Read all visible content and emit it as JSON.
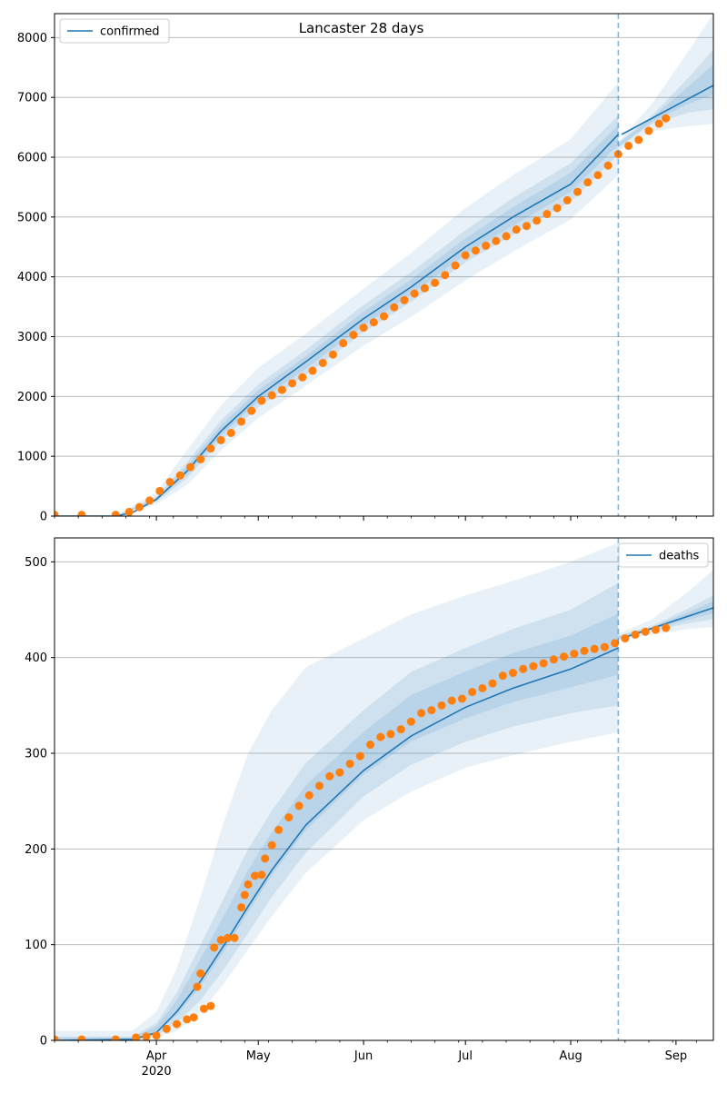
{
  "colors": {
    "model_line": "#1f77b4",
    "observed": "#ff7f0e",
    "band": "#1f77b4",
    "grid": "#b0b0b0",
    "vline": "#1f77b4"
  },
  "chart_data": [
    {
      "type": "line",
      "title": "Lancaster 28 days",
      "legend": {
        "label": "confirmed",
        "placement": "top-left"
      },
      "xlim": [
        "2020-03-02",
        "2020-09-12"
      ],
      "ylim": [
        0,
        8400
      ],
      "yticks": [
        0,
        1000,
        2000,
        3000,
        4000,
        5000,
        6000,
        7000,
        8000
      ],
      "grid": "y",
      "vline_date": "2020-08-15",
      "series": [
        {
          "name": "confirmed",
          "kind": "model",
          "x": [
            "2020-03-02",
            "2020-03-20",
            "2020-03-25",
            "2020-04-01",
            "2020-04-10",
            "2020-04-20",
            "2020-05-01",
            "2020-05-15",
            "2020-06-01",
            "2020-06-15",
            "2020-07-01",
            "2020-07-15",
            "2020-08-01",
            "2020-08-15"
          ],
          "y": [
            0,
            0,
            60,
            280,
            750,
            1420,
            2000,
            2580,
            3300,
            3830,
            4500,
            5000,
            5550,
            6380
          ]
        },
        {
          "kind": "forecast",
          "x": [
            "2020-08-16",
            "2020-09-12"
          ],
          "y": [
            6380,
            7200
          ]
        }
      ],
      "bands": [
        {
          "x": [
            "2020-03-02",
            "2020-03-20",
            "2020-04-01",
            "2020-04-10",
            "2020-04-20",
            "2020-05-01",
            "2020-05-15",
            "2020-06-01",
            "2020-06-15",
            "2020-07-01",
            "2020-07-15",
            "2020-08-01",
            "2020-08-15"
          ],
          "outer_upper": [
            0,
            0,
            400,
            1100,
            1850,
            2480,
            3050,
            3800,
            4400,
            5150,
            5700,
            6300,
            7250
          ],
          "outer_lower": [
            0,
            0,
            200,
            520,
            1100,
            1640,
            2180,
            2850,
            3330,
            3940,
            4420,
            4960,
            5700
          ],
          "inner_upper": [
            0,
            0,
            330,
            900,
            1600,
            2200,
            2780,
            3530,
            4080,
            4780,
            5320,
            5900,
            6700
          ],
          "inner_lower": [
            0,
            0,
            240,
            630,
            1260,
            1820,
            2360,
            3070,
            3580,
            4240,
            4700,
            5260,
            6040
          ]
        },
        {
          "x": [
            "2020-08-15",
            "2020-08-25",
            "2020-09-05",
            "2020-09-12"
          ],
          "outer_upper": [
            6250,
            6900,
            7800,
            8400
          ],
          "outer_lower": [
            6100,
            6440,
            6520,
            6560
          ],
          "inner_upper": [
            6250,
            6700,
            7350,
            7800
          ],
          "inner_lower": [
            6150,
            6560,
            6750,
            6800
          ]
        }
      ],
      "observed": [
        [
          "2020-03-02",
          20
        ],
        [
          "2020-03-10",
          20
        ],
        [
          "2020-03-20",
          20
        ],
        [
          "2020-03-24",
          70
        ],
        [
          "2020-03-27",
          150
        ],
        [
          "2020-03-30",
          260
        ],
        [
          "2020-04-02",
          420
        ],
        [
          "2020-04-05",
          570
        ],
        [
          "2020-04-08",
          680
        ],
        [
          "2020-04-11",
          820
        ],
        [
          "2020-04-14",
          950
        ],
        [
          "2020-04-17",
          1130
        ],
        [
          "2020-04-20",
          1270
        ],
        [
          "2020-04-23",
          1390
        ],
        [
          "2020-04-26",
          1580
        ],
        [
          "2020-04-29",
          1760
        ],
        [
          "2020-05-02",
          1930
        ],
        [
          "2020-05-05",
          2020
        ],
        [
          "2020-05-08",
          2110
        ],
        [
          "2020-05-11",
          2220
        ],
        [
          "2020-05-14",
          2320
        ],
        [
          "2020-05-17",
          2430
        ],
        [
          "2020-05-20",
          2560
        ],
        [
          "2020-05-23",
          2700
        ],
        [
          "2020-05-26",
          2890
        ],
        [
          "2020-05-29",
          3030
        ],
        [
          "2020-06-01",
          3150
        ],
        [
          "2020-06-04",
          3240
        ],
        [
          "2020-06-07",
          3340
        ],
        [
          "2020-06-10",
          3490
        ],
        [
          "2020-06-13",
          3610
        ],
        [
          "2020-06-16",
          3720
        ],
        [
          "2020-06-19",
          3810
        ],
        [
          "2020-06-22",
          3900
        ],
        [
          "2020-06-25",
          4030
        ],
        [
          "2020-06-28",
          4190
        ],
        [
          "2020-07-01",
          4360
        ],
        [
          "2020-07-04",
          4440
        ],
        [
          "2020-07-07",
          4520
        ],
        [
          "2020-07-10",
          4600
        ],
        [
          "2020-07-13",
          4680
        ],
        [
          "2020-07-16",
          4790
        ],
        [
          "2020-07-19",
          4850
        ],
        [
          "2020-07-22",
          4940
        ],
        [
          "2020-07-25",
          5050
        ],
        [
          "2020-07-28",
          5150
        ],
        [
          "2020-07-31",
          5280
        ],
        [
          "2020-08-03",
          5420
        ],
        [
          "2020-08-06",
          5580
        ],
        [
          "2020-08-09",
          5700
        ],
        [
          "2020-08-12",
          5860
        ],
        [
          "2020-08-15",
          6050
        ],
        [
          "2020-08-18",
          6190
        ],
        [
          "2020-08-21",
          6290
        ],
        [
          "2020-08-24",
          6440
        ],
        [
          "2020-08-27",
          6560
        ],
        [
          "2020-08-29",
          6650
        ]
      ]
    },
    {
      "type": "line",
      "legend": {
        "label": "deaths",
        "placement": "top-right"
      },
      "xlim": [
        "2020-03-02",
        "2020-09-12"
      ],
      "ylim": [
        0,
        525
      ],
      "yticks": [
        0,
        100,
        200,
        300,
        400,
        500
      ],
      "grid": "y",
      "vline_date": "2020-08-15",
      "xticks": [
        {
          "date": "2020-04-01",
          "label": "Apr",
          "sublabel": "2020"
        },
        {
          "date": "2020-05-01",
          "label": "May"
        },
        {
          "date": "2020-06-01",
          "label": "Jun"
        },
        {
          "date": "2020-07-01",
          "label": "Jul"
        },
        {
          "date": "2020-08-01",
          "label": "Aug"
        },
        {
          "date": "2020-09-01",
          "label": "Sep"
        }
      ],
      "series": [
        {
          "name": "deaths",
          "kind": "model",
          "x": [
            "2020-03-02",
            "2020-03-25",
            "2020-04-01",
            "2020-04-07",
            "2020-04-14",
            "2020-04-21",
            "2020-04-28",
            "2020-05-05",
            "2020-05-15",
            "2020-06-01",
            "2020-06-15",
            "2020-07-01",
            "2020-07-15",
            "2020-08-01",
            "2020-08-15"
          ],
          "y": [
            0,
            1,
            8,
            30,
            62,
            100,
            140,
            178,
            225,
            282,
            318,
            348,
            368,
            388,
            410
          ]
        },
        {
          "kind": "forecast",
          "x": [
            "2020-08-16",
            "2020-09-12"
          ],
          "y": [
            420,
            452
          ]
        }
      ],
      "bands": [
        {
          "x": [
            "2020-03-02",
            "2020-03-25",
            "2020-04-01",
            "2020-04-07",
            "2020-04-14",
            "2020-04-21",
            "2020-04-28",
            "2020-05-05",
            "2020-05-15",
            "2020-06-01",
            "2020-06-15",
            "2020-07-01",
            "2020-07-15",
            "2020-08-01",
            "2020-08-15"
          ],
          "outer_upper": [
            10,
            10,
            30,
            75,
            150,
            230,
            300,
            345,
            390,
            420,
            445,
            465,
            480,
            500,
            520
          ],
          "outer_lower": [
            0,
            0,
            3,
            10,
            30,
            60,
            95,
            130,
            175,
            230,
            260,
            285,
            298,
            312,
            322
          ],
          "inner_upper": [
            4,
            4,
            18,
            50,
            100,
            150,
            200,
            240,
            290,
            345,
            385,
            410,
            430,
            450,
            478
          ],
          "inner_lower": [
            0,
            0,
            5,
            18,
            42,
            75,
            112,
            150,
            196,
            255,
            288,
            312,
            328,
            342,
            350
          ]
        },
        {
          "x": [
            "2020-08-15",
            "2020-08-25",
            "2020-09-05",
            "2020-09-12"
          ],
          "outer_upper": [
            425,
            440,
            470,
            492
          ],
          "outer_lower": [
            418,
            424,
            430,
            432
          ],
          "inner_upper": [
            423,
            433,
            452,
            465
          ],
          "inner_lower": [
            419,
            428,
            436,
            440
          ]
        }
      ],
      "observed": [
        [
          "2020-03-02",
          1
        ],
        [
          "2020-03-10",
          1
        ],
        [
          "2020-03-20",
          1
        ],
        [
          "2020-03-26",
          3
        ],
        [
          "2020-03-29",
          4
        ],
        [
          "2020-04-01",
          5
        ],
        [
          "2020-04-04",
          12
        ],
        [
          "2020-04-07",
          17
        ],
        [
          "2020-04-10",
          22
        ],
        [
          "2020-04-12",
          24
        ],
        [
          "2020-04-13",
          56
        ],
        [
          "2020-04-14",
          70
        ],
        [
          "2020-04-15",
          33
        ],
        [
          "2020-04-17",
          36
        ],
        [
          "2020-04-18",
          97
        ],
        [
          "2020-04-20",
          105
        ],
        [
          "2020-04-22",
          107
        ],
        [
          "2020-04-24",
          107
        ],
        [
          "2020-04-26",
          139
        ],
        [
          "2020-04-27",
          152
        ],
        [
          "2020-04-28",
          163
        ],
        [
          "2020-04-30",
          172
        ],
        [
          "2020-05-02",
          173
        ],
        [
          "2020-05-03",
          190
        ],
        [
          "2020-05-05",
          204
        ],
        [
          "2020-05-07",
          220
        ],
        [
          "2020-05-10",
          233
        ],
        [
          "2020-05-13",
          245
        ],
        [
          "2020-05-16",
          256
        ],
        [
          "2020-05-19",
          266
        ],
        [
          "2020-05-22",
          276
        ],
        [
          "2020-05-25",
          280
        ],
        [
          "2020-05-28",
          289
        ],
        [
          "2020-05-31",
          297
        ],
        [
          "2020-06-03",
          309
        ],
        [
          "2020-06-06",
          317
        ],
        [
          "2020-06-09",
          320
        ],
        [
          "2020-06-12",
          325
        ],
        [
          "2020-06-15",
          333
        ],
        [
          "2020-06-18",
          342
        ],
        [
          "2020-06-21",
          345
        ],
        [
          "2020-06-24",
          350
        ],
        [
          "2020-06-27",
          355
        ],
        [
          "2020-06-30",
          357
        ],
        [
          "2020-07-03",
          364
        ],
        [
          "2020-07-06",
          368
        ],
        [
          "2020-07-09",
          373
        ],
        [
          "2020-07-12",
          381
        ],
        [
          "2020-07-15",
          384
        ],
        [
          "2020-07-18",
          388
        ],
        [
          "2020-07-21",
          391
        ],
        [
          "2020-07-24",
          394
        ],
        [
          "2020-07-27",
          398
        ],
        [
          "2020-07-30",
          401
        ],
        [
          "2020-08-02",
          404
        ],
        [
          "2020-08-05",
          407
        ],
        [
          "2020-08-08",
          409
        ],
        [
          "2020-08-11",
          411
        ],
        [
          "2020-08-14",
          415
        ],
        [
          "2020-08-17",
          420
        ],
        [
          "2020-08-20",
          424
        ],
        [
          "2020-08-23",
          427
        ],
        [
          "2020-08-26",
          429
        ],
        [
          "2020-08-29",
          431
        ]
      ]
    }
  ]
}
